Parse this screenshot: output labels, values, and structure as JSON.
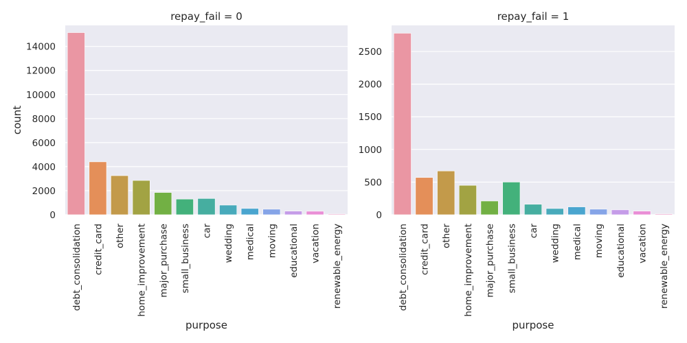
{
  "chart_data": [
    {
      "type": "bar",
      "title": "repay_fail = 0",
      "xlabel": "purpose",
      "ylabel": "count",
      "ylim": [
        0,
        15750
      ],
      "yticks": [
        0,
        2000,
        4000,
        6000,
        8000,
        10000,
        12000,
        14000
      ],
      "grid": true,
      "categories": [
        "debt_consolidation",
        "credit_card",
        "other",
        "home_improvement",
        "major_purchase",
        "small_business",
        "car",
        "wedding",
        "medical",
        "moving",
        "educational",
        "vacation",
        "renewable_energy"
      ],
      "values": [
        15150,
        4400,
        3250,
        2850,
        1850,
        1300,
        1350,
        800,
        520,
        460,
        300,
        290,
        60
      ]
    },
    {
      "type": "bar",
      "title": "repay_fail = 1",
      "xlabel": "purpose",
      "ylabel": "",
      "ylim": [
        0,
        2900
      ],
      "yticks": [
        0,
        500,
        1000,
        1500,
        2000,
        2500
      ],
      "grid": true,
      "categories": [
        "debt_consolidation",
        "credit_card",
        "other",
        "home_improvement",
        "major_purchase",
        "small_business",
        "car",
        "wedding",
        "medical",
        "moving",
        "educational",
        "vacation",
        "renewable_energy"
      ],
      "values": [
        2780,
        570,
        670,
        450,
        210,
        500,
        160,
        95,
        120,
        85,
        75,
        55,
        12
      ]
    }
  ],
  "colors": [
    "#ea96a3",
    "#e48f59",
    "#c39a4a",
    "#a2a343",
    "#72b044",
    "#43b17b",
    "#46aea0",
    "#48aabb",
    "#4aa5cf",
    "#85a4e7",
    "#c59ce8",
    "#e98ed6",
    "#e990c0"
  ]
}
